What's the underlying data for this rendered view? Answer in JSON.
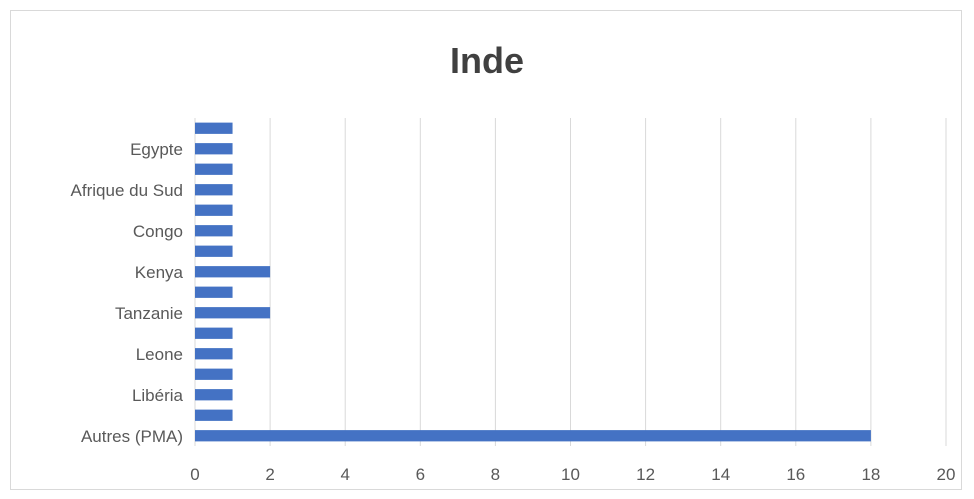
{
  "chart_data": {
    "type": "bar",
    "orientation": "horizontal",
    "title": "Inde",
    "categories": [
      "Autres (PMA)",
      "",
      "Libéria",
      "",
      "Leone",
      "",
      "Tanzanie",
      "",
      "Kenya",
      "",
      "Congo",
      "",
      "Afrique du Sud",
      "",
      "Egypte",
      ""
    ],
    "values": [
      18,
      1,
      1,
      1,
      1,
      1,
      2,
      1,
      2,
      1,
      1,
      1,
      1,
      1,
      1,
      1
    ],
    "xlim": [
      0,
      20
    ],
    "xticks": [
      0,
      2,
      4,
      6,
      8,
      10,
      12,
      14,
      16,
      18,
      20
    ],
    "grid": true,
    "bar_color": "#4472c4",
    "grid_color": "#d9d9d9"
  }
}
